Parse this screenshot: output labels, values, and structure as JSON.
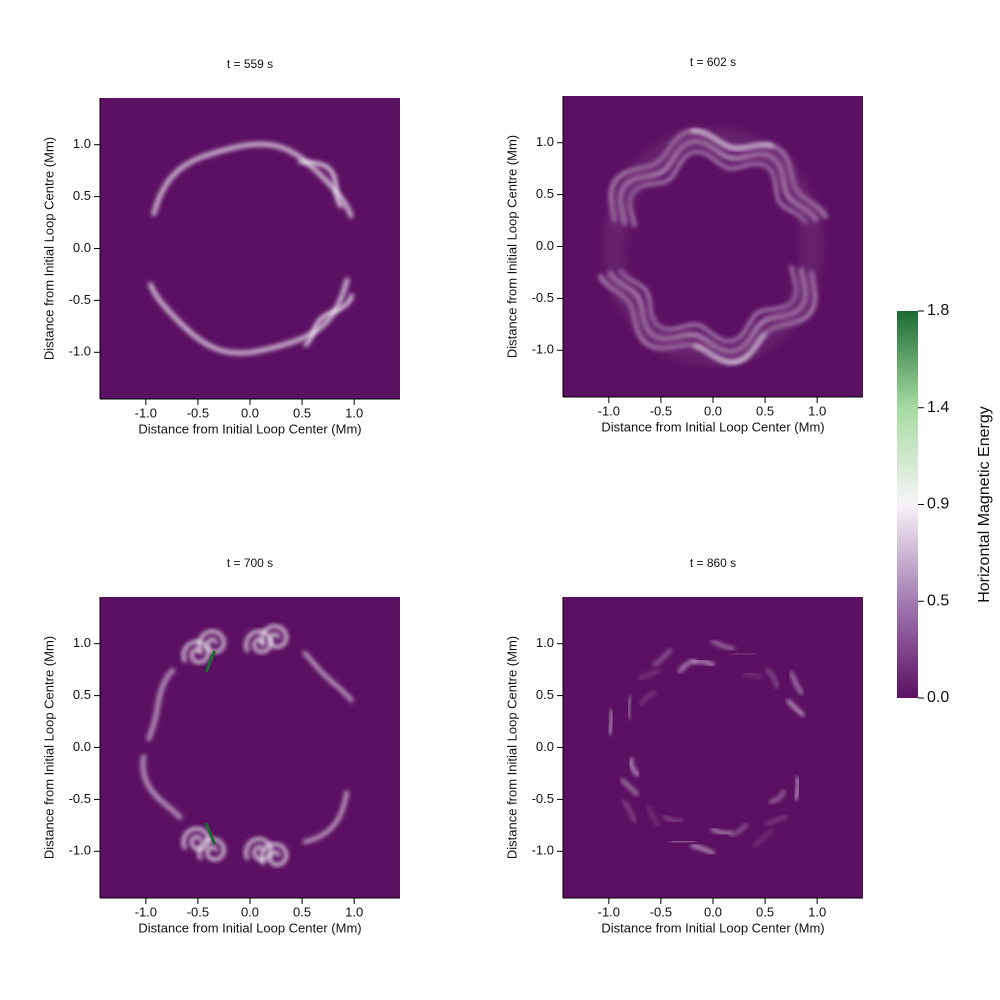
{
  "chart_data": [
    {
      "type": "heatmap",
      "title": "t = 559 s",
      "xlabel": "Distance from Initial Loop Center (Mm)",
      "ylabel": "Distance from Initial Loop Centre (Mm)",
      "xlim": [
        -1.44,
        1.44
      ],
      "ylim": [
        -1.45,
        1.45
      ],
      "xticks": [
        {
          "value": -1,
          "label": "-1.0"
        },
        -0.5,
        {
          "value": 0,
          "label": "0.0"
        },
        0.5,
        {
          "value": 1,
          "label": "1.0"
        }
      ],
      "yticks": [
        {
          "value": -1,
          "label": "-1.0"
        },
        -0.5,
        {
          "value": 0,
          "label": "0.0"
        },
        0.5,
        {
          "value": 1,
          "label": "1.0"
        }
      ]
    },
    {
      "type": "heatmap",
      "title": "t = 602 s",
      "xlabel": "Distance from Initial Loop Center (Mm)",
      "ylabel": "Distance from Initial Loop Centre (Mm)",
      "xlim": [
        -1.44,
        1.44
      ],
      "ylim": [
        -1.45,
        1.45
      ],
      "xticks": [
        {
          "value": -1,
          "label": "-1.0"
        },
        -0.5,
        {
          "value": 0,
          "label": "0.0"
        },
        0.5,
        {
          "value": 1,
          "label": "1.0"
        }
      ],
      "yticks": [
        {
          "value": -1,
          "label": "-1.0"
        },
        -0.5,
        {
          "value": 0,
          "label": "0.0"
        },
        0.5,
        {
          "value": 1,
          "label": "1.0"
        }
      ]
    },
    {
      "type": "heatmap",
      "title": "t = 700 s",
      "xlabel": "Distance from Initial Loop Center (Mm)",
      "ylabel": "Distance from Initial Loop Centre (Mm)",
      "xlim": [
        -1.44,
        1.44
      ],
      "ylim": [
        -1.45,
        1.45
      ],
      "xticks": [
        {
          "value": -1,
          "label": "-1.0"
        },
        -0.5,
        {
          "value": 0,
          "label": "0.0"
        },
        0.5,
        {
          "value": 1,
          "label": "1.0"
        }
      ],
      "yticks": [
        {
          "value": -1,
          "label": "-1.0"
        },
        -0.5,
        {
          "value": 0,
          "label": "0.0"
        },
        0.5,
        {
          "value": 1,
          "label": "1.0"
        }
      ]
    },
    {
      "type": "heatmap",
      "title": "t = 860 s",
      "xlabel": "Distance from Initial Loop Center (Mm)",
      "ylabel": "Distance from Initial Loop Centre (Mm)",
      "xlim": [
        -1.44,
        1.44
      ],
      "ylim": [
        -1.45,
        1.45
      ],
      "xticks": [
        {
          "value": -1,
          "label": "-1.0"
        },
        -0.5,
        {
          "value": 0,
          "label": "0.0"
        },
        0.5,
        {
          "value": 1,
          "label": "1.0"
        }
      ],
      "yticks": [
        {
          "value": -1,
          "label": "-1.0"
        },
        -0.5,
        {
          "value": 0,
          "label": "0.0"
        },
        0.5,
        {
          "value": 1,
          "label": "1.0"
        }
      ]
    }
  ],
  "colorbar": {
    "label": "Horizontal Magnetic Energy",
    "lim": [
      0,
      1.8
    ],
    "ticks": [
      {
        "value": 0,
        "label": "0.0"
      },
      {
        "value": 0.45,
        "label": "0.5"
      },
      0.9,
      {
        "value": 1.35,
        "label": "1.4"
      },
      1.8
    ],
    "colors": [
      "#5b1162",
      "#a37bb3",
      "#f7f4f7",
      "#a6dba0",
      "#1b6b33"
    ]
  }
}
